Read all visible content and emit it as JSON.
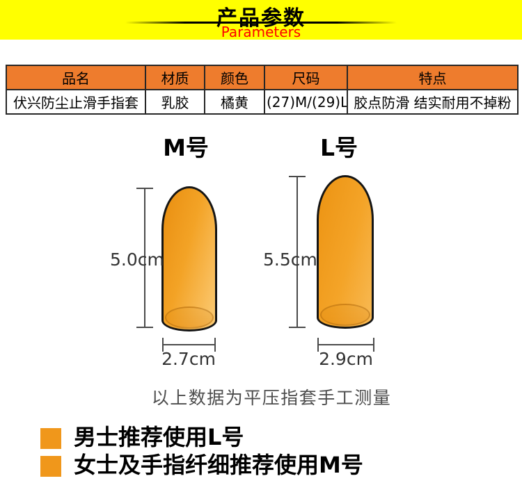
{
  "banner": {
    "title": "产品参数",
    "subtitle": "Parameters",
    "bg_color": "#FFFF00",
    "subtitle_color": "#FE0000"
  },
  "table": {
    "header_bg": "#EE7C2D",
    "columns": [
      "品名",
      "材质",
      "颜色",
      "尺码",
      "特点"
    ],
    "row": [
      "伏兴防尘止滑手指套",
      "乳胶",
      "橘黄",
      "(27)M/(29)L",
      "胶点防滑 结实耐用不掉粉"
    ]
  },
  "diagram": {
    "cot_color": "#F5A62B",
    "sizes": [
      {
        "label": "M号",
        "height_label": "5.0cm",
        "width_label": "2.7cm"
      },
      {
        "label": "L号",
        "height_label": "5.5cm",
        "width_label": "2.9cm"
      }
    ],
    "note": "以上数据为平压指套手工测量"
  },
  "recommendations": {
    "bullet_color": "#F0971B",
    "items": [
      {
        "text": "男士推荐使用L号"
      },
      {
        "text": "女士及手指纤细推荐使用M号"
      }
    ]
  }
}
